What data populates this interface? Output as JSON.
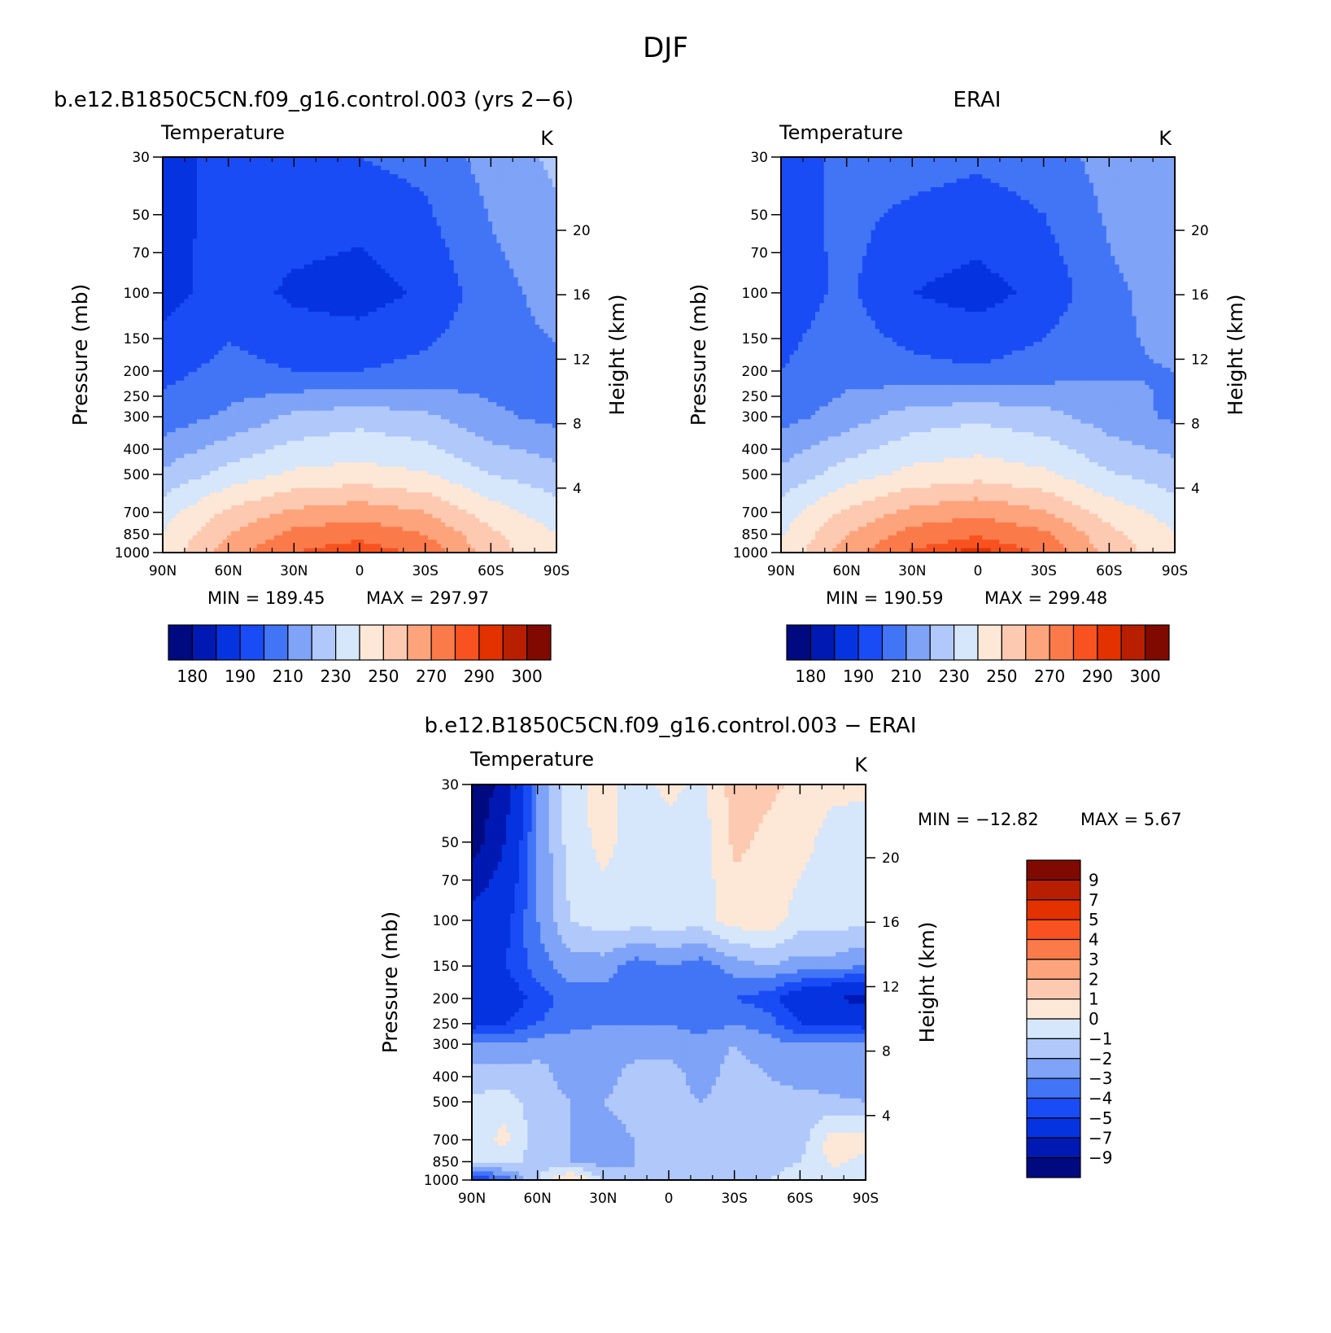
{
  "figure": {
    "title": "DJF"
  },
  "colors": {
    "temperature": [
      "#000a80",
      "#0019b3",
      "#0633e0",
      "#1a4cf5",
      "#4275f6",
      "#7ea3f7",
      "#b0c8fa",
      "#d6e6fb",
      "#fde7d6",
      "#fdc9b0",
      "#fda47c",
      "#fb7a4a",
      "#f7521f",
      "#e33100",
      "#b81f00",
      "#800a00"
    ],
    "difference": [
      "#000a80",
      "#0019b3",
      "#0633e0",
      "#1a4cf5",
      "#4275f6",
      "#7ea3f7",
      "#b0c8fa",
      "#d6e6fb",
      "#fde7d6",
      "#fdc9b0",
      "#fda47c",
      "#fb7a4a",
      "#f7521f",
      "#e33100",
      "#b81f00",
      "#800a00"
    ]
  },
  "chart_data": [
    {
      "type": "heatmap",
      "title": "b.e12.B1850C5CN.f09_g16.control.003 (yrs 2−6)",
      "panel_label": "Temperature",
      "units": "K",
      "xlabel": "",
      "ylabel": "Pressure  (mb)",
      "ylabel_right": "Height  (km)",
      "x_ticks": [
        "90N",
        "60N",
        "30N",
        "0",
        "30S",
        "60S",
        "90S"
      ],
      "y_ticks": [
        "30",
        "50",
        "70",
        "100",
        "150",
        "200",
        "250",
        "300",
        "400",
        "500",
        "700",
        "850",
        "1000"
      ],
      "y_ticks_right": [
        "20",
        "16",
        "12",
        "8",
        "4"
      ],
      "y_scale": "log-pressure",
      "stats": {
        "min_label": "MIN  =  189.45",
        "max_label": "MAX  =  297.97",
        "min": 189.45,
        "max": 297.97
      },
      "colorbar_labels": [
        "180",
        "190",
        "210",
        "230",
        "250",
        "270",
        "290",
        "300"
      ],
      "field": {
        "lat": [
          90,
          60,
          30,
          0,
          -30,
          -60,
          -90
        ],
        "pressure": [
          30,
          100,
          200,
          300,
          500,
          700,
          850,
          1000
        ],
        "values": [
          [
            194,
            205,
            210,
            210,
            213,
            224,
            232
          ],
          [
            196,
            205,
            198,
            195,
            202,
            216,
            224
          ],
          [
            207,
            213,
            210,
            210,
            213,
            216,
            218
          ],
          [
            214,
            222,
            232,
            236,
            232,
            222,
            217
          ],
          [
            232,
            244,
            252,
            254,
            251,
            240,
            234
          ],
          [
            246,
            262,
            272,
            276,
            270,
            255,
            244
          ],
          [
            250,
            270,
            283,
            287,
            280,
            262,
            250
          ],
          [
            252,
            276,
            290,
            296,
            287,
            265,
            252
          ]
        ]
      }
    },
    {
      "type": "heatmap",
      "title": "ERAI",
      "panel_label": "Temperature",
      "units": "K",
      "xlabel": "",
      "ylabel": "Pressure  (mb)",
      "ylabel_right": "Height  (km)",
      "x_ticks": [
        "90N",
        "60N",
        "30N",
        "0",
        "30S",
        "60S",
        "90S"
      ],
      "y_ticks": [
        "30",
        "50",
        "70",
        "100",
        "150",
        "200",
        "250",
        "300",
        "400",
        "500",
        "700",
        "850",
        "1000"
      ],
      "y_ticks_right": [
        "20",
        "16",
        "12",
        "8",
        "4"
      ],
      "y_scale": "log-pressure",
      "stats": {
        "min_label": "MIN  =  190.59",
        "max_label": "MAX  =  299.48",
        "min": 190.59,
        "max": 299.48
      },
      "colorbar_labels": [
        "180",
        "190",
        "210",
        "230",
        "250",
        "270",
        "290",
        "300"
      ],
      "field": {
        "lat": [
          90,
          60,
          30,
          0,
          -30,
          -60,
          -90
        ],
        "pressure": [
          30,
          100,
          200,
          300,
          500,
          700,
          850,
          1000
        ],
        "values": [
          [
            205,
            213,
            214,
            212,
            215,
            224,
            230
          ],
          [
            205,
            212,
            200,
            196,
            203,
            218,
            224
          ],
          [
            210,
            216,
            213,
            211,
            215,
            219,
            220
          ],
          [
            216,
            225,
            235,
            238,
            234,
            225,
            218
          ],
          [
            233,
            245,
            253,
            256,
            252,
            241,
            235
          ],
          [
            245,
            262,
            273,
            278,
            271,
            256,
            245
          ],
          [
            249,
            270,
            284,
            289,
            282,
            263,
            251
          ],
          [
            251,
            276,
            291,
            298,
            289,
            266,
            253
          ]
        ]
      }
    },
    {
      "type": "heatmap",
      "title": "b.e12.B1850C5CN.f09_g16.control.003 − ERAI",
      "panel_label": "Temperature",
      "units": "K",
      "xlabel": "",
      "ylabel": "Pressure  (mb)",
      "ylabel_right": "Height  (km)",
      "x_ticks": [
        "90N",
        "60N",
        "30N",
        "0",
        "30S",
        "60S",
        "90S"
      ],
      "y_ticks": [
        "30",
        "50",
        "70",
        "100",
        "150",
        "200",
        "250",
        "300",
        "400",
        "500",
        "700",
        "850",
        "1000"
      ],
      "y_ticks_right": [
        "20",
        "16",
        "12",
        "8",
        "4"
      ],
      "y_scale": "log-pressure",
      "stats": {
        "min_label": "MIN  =  −12.82",
        "max_label": "MAX  =     5.67",
        "min": -12.82,
        "max": 5.67
      },
      "colorbar_labels": [
        "9",
        "7",
        "5",
        "4",
        "3",
        "2",
        "1",
        "0",
        "−1",
        "−2",
        "−3",
        "−4",
        "−5",
        "−7",
        "−9"
      ],
      "field": {
        "lat": [
          90,
          75,
          60,
          45,
          30,
          15,
          0,
          -15,
          -30,
          -45,
          -60,
          -75,
          -90
        ],
        "pressure": [
          30,
          50,
          100,
          150,
          200,
          250,
          300,
          400,
          500,
          700,
          850,
          1000
        ],
        "values": [
          [
            -11,
            -8,
            -3,
            -0.5,
            0.5,
            -0.5,
            0.3,
            -0.3,
            1.5,
            1.2,
            0.8,
            0.3,
            0.2
          ],
          [
            -10,
            -7,
            -3,
            -0.5,
            0.3,
            -0.5,
            -0.5,
            -0.5,
            1.2,
            0.8,
            0.4,
            -0.5,
            -0.5
          ],
          [
            -6,
            -5.5,
            -3,
            -1,
            -0.5,
            -0.5,
            -0.5,
            -0.5,
            0.5,
            0.7,
            -0.5,
            -0.5,
            -0.8
          ],
          [
            -5.5,
            -5,
            -3.5,
            -2.5,
            -2.5,
            -3.5,
            -3,
            -3.5,
            -2.5,
            -2,
            -2.5,
            -2.5,
            -3
          ],
          [
            -7,
            -6,
            -4.5,
            -3.5,
            -3.5,
            -3.5,
            -3.2,
            -3.5,
            -4,
            -4.5,
            -6,
            -7,
            -7.5
          ],
          [
            -5.5,
            -5,
            -4,
            -3.5,
            -3,
            -3,
            -3,
            -3.5,
            -3,
            -3.5,
            -5,
            -5,
            -5.5
          ],
          [
            -3,
            -3,
            -2.5,
            -2.2,
            -2.2,
            -2.5,
            -2.5,
            -2.5,
            -2,
            -2.5,
            -3,
            -3,
            -3
          ],
          [
            -1.5,
            -1.5,
            -1.5,
            -2.5,
            -2.5,
            -1.5,
            -1.5,
            -2.5,
            -1.5,
            -2,
            -2.5,
            -2.5,
            -2.5
          ],
          [
            -0.8,
            -0.5,
            -1.5,
            -2,
            -2,
            -1.5,
            -1.5,
            -2,
            -1.5,
            -1.5,
            -1.5,
            -1.8,
            -2
          ],
          [
            -0.5,
            0.3,
            -1.5,
            -2,
            -2.5,
            -2,
            -1.5,
            -1.5,
            -1.5,
            -1.5,
            -1.5,
            0.5,
            0.5
          ],
          [
            -0.5,
            -0.5,
            -1.5,
            -2,
            -2.5,
            -2,
            -1.5,
            -1.5,
            -2,
            -1.5,
            -1,
            0.3,
            -0.3
          ],
          [
            -5,
            -4,
            -1,
            1.5,
            -1,
            -2,
            -1.5,
            -1.5,
            -1,
            -1,
            -0.5,
            -1,
            -0.5
          ]
        ]
      }
    }
  ]
}
